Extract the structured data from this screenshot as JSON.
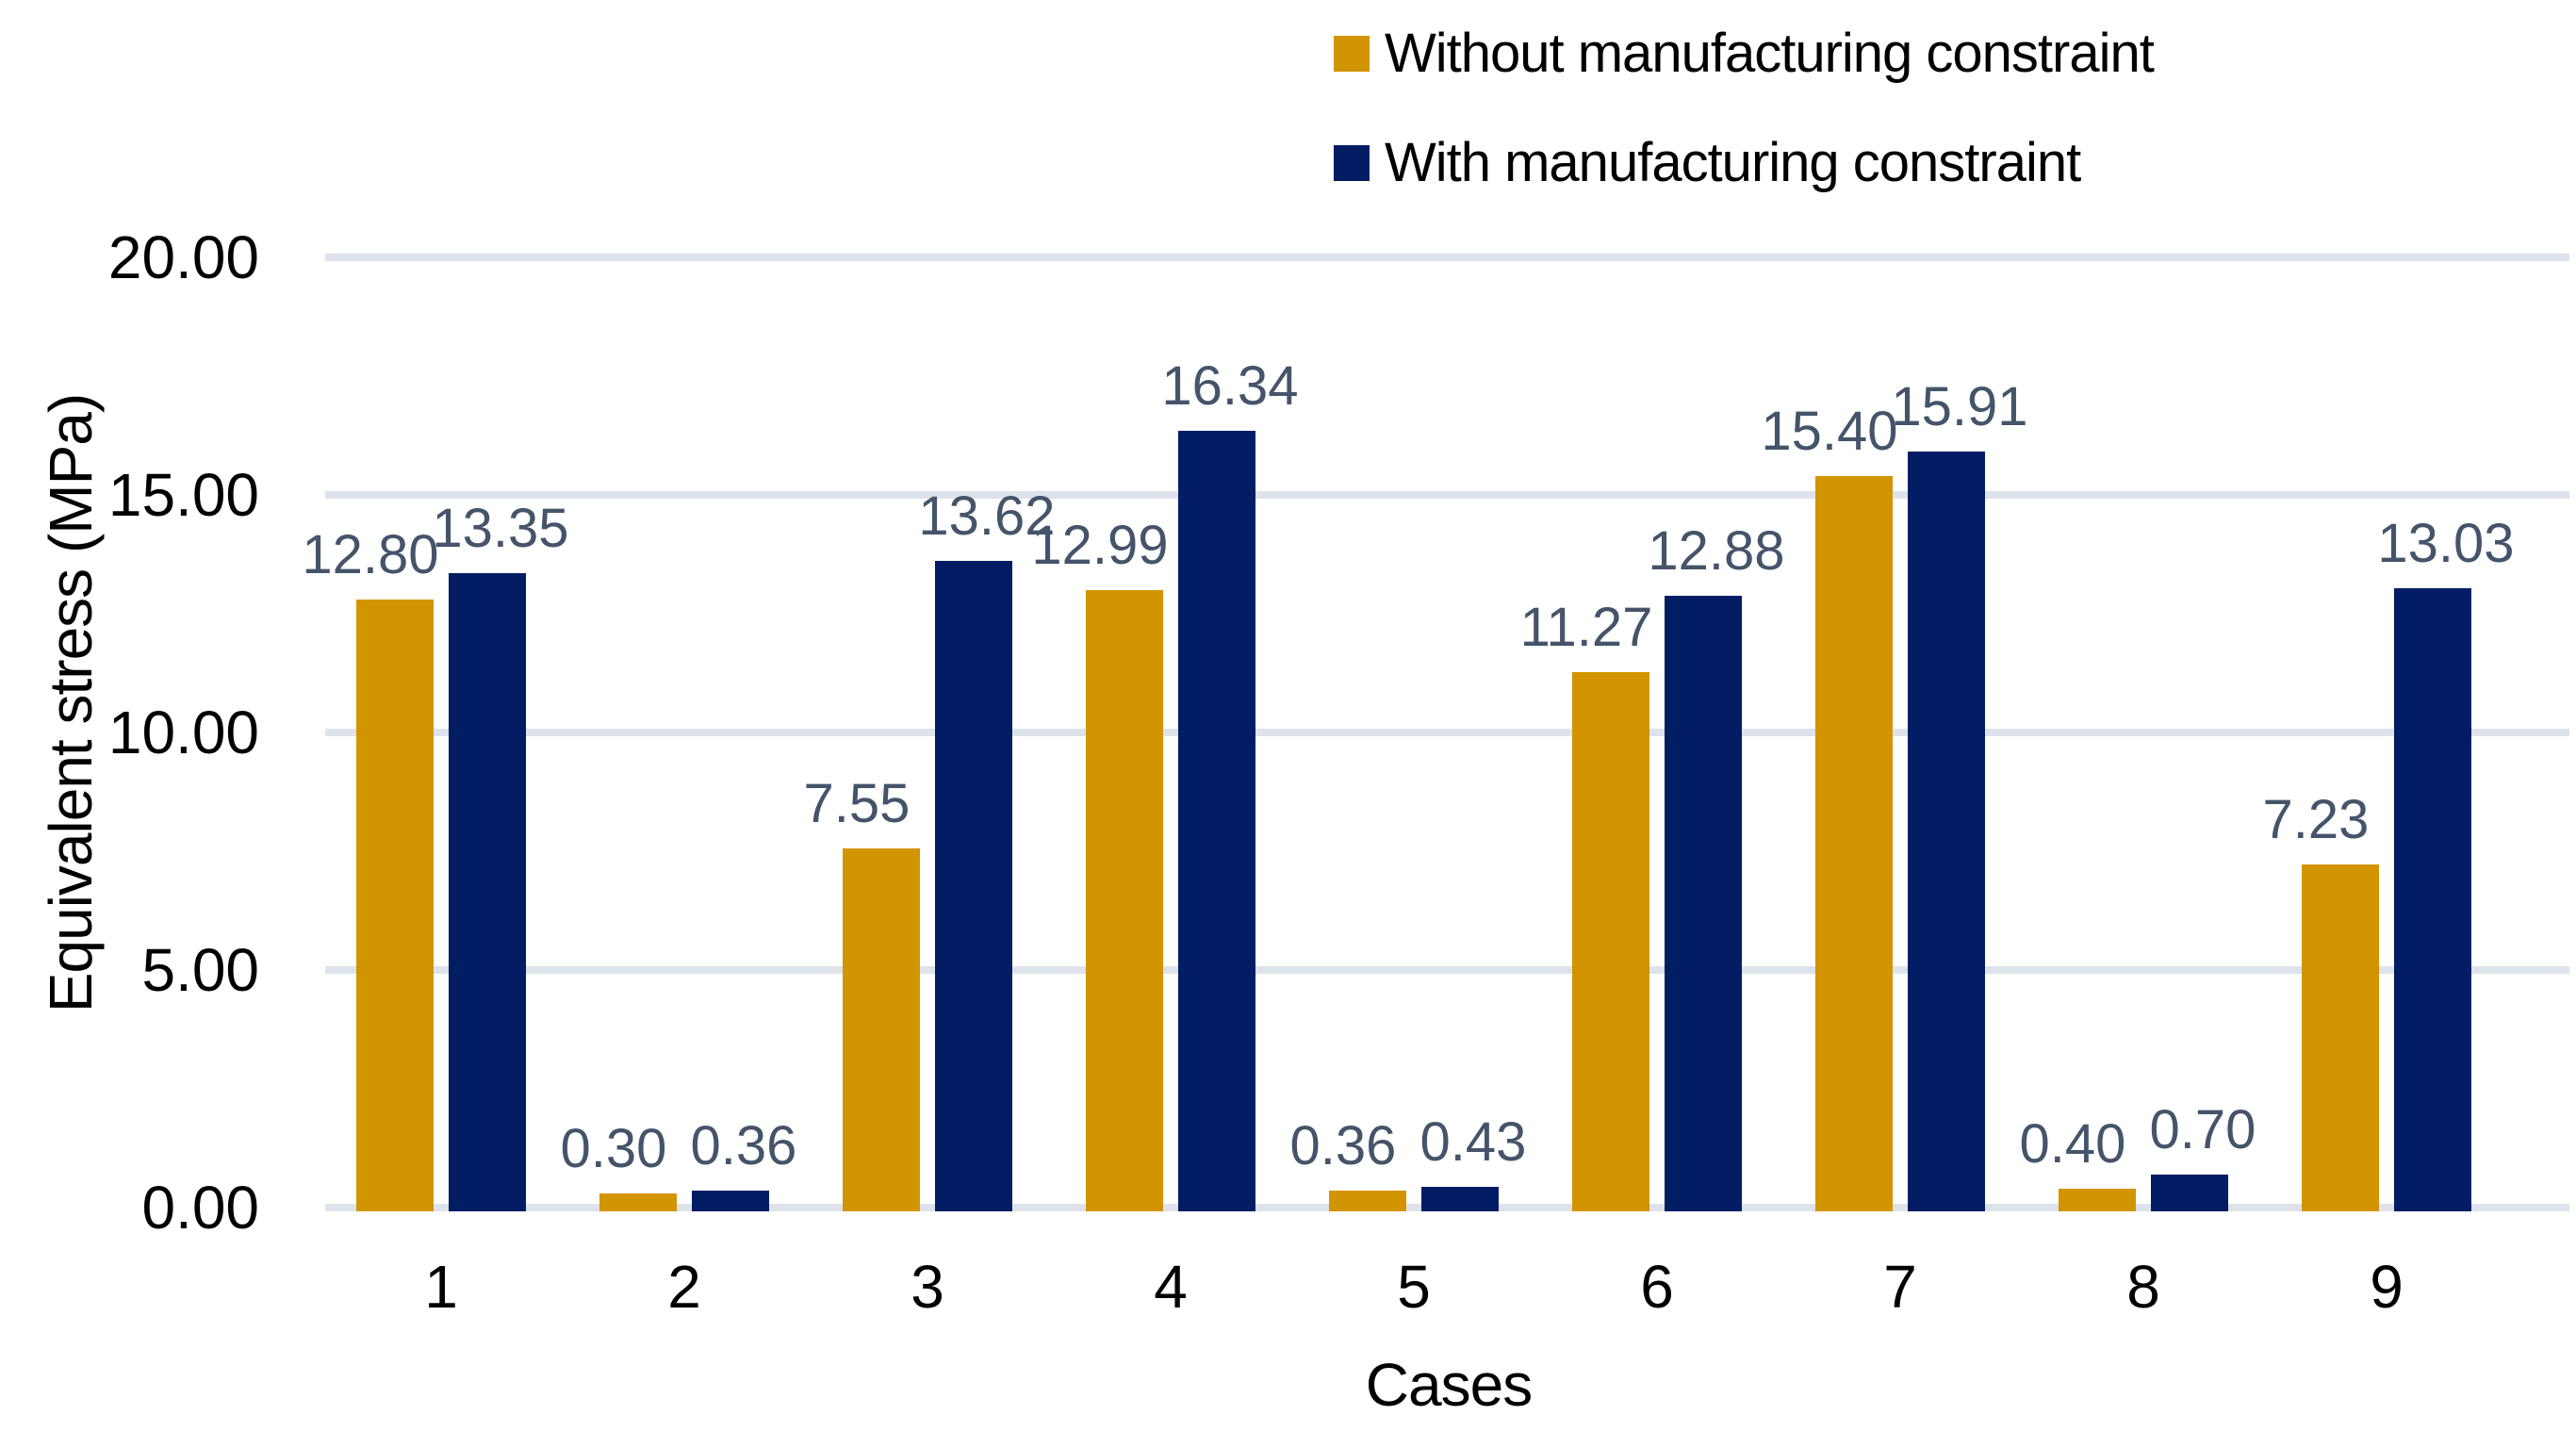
{
  "chart_data": {
    "type": "bar",
    "title": "",
    "xlabel": "Cases",
    "ylabel": "Equivalent stress (MPa)",
    "categories": [
      "1",
      "2",
      "3",
      "4",
      "5",
      "6",
      "7",
      "8",
      "9"
    ],
    "series": [
      {
        "name": "Without manufacturing constraint",
        "color": "#D29400",
        "values": [
          12.8,
          0.3,
          7.55,
          12.99,
          0.36,
          11.27,
          15.4,
          0.4,
          7.23
        ],
        "labels": [
          "12.80",
          "0.30",
          "7.55",
          "12.99",
          "0.36",
          "11.27",
          "15.40",
          "0.40",
          "7.23"
        ]
      },
      {
        "name": "With manufacturing constraint",
        "color": "#021D63",
        "values": [
          13.35,
          0.36,
          13.62,
          16.34,
          0.43,
          12.88,
          15.91,
          0.7,
          13.03
        ],
        "labels": [
          "13.35",
          "0.36",
          "13.62",
          "16.34",
          "0.43",
          "12.88",
          "15.91",
          "0.70",
          "13.03"
        ]
      }
    ],
    "ylim": [
      0,
      20
    ],
    "yticks": [
      "0.00",
      "5.00",
      "10.00",
      "15.00",
      "20.00"
    ],
    "grid": true,
    "legend_position": "top-right",
    "colors": {
      "data_label": "#44546A",
      "gridline": "#DDE3EA",
      "axis_text": "#000000",
      "background": "#FFFFFF"
    }
  }
}
